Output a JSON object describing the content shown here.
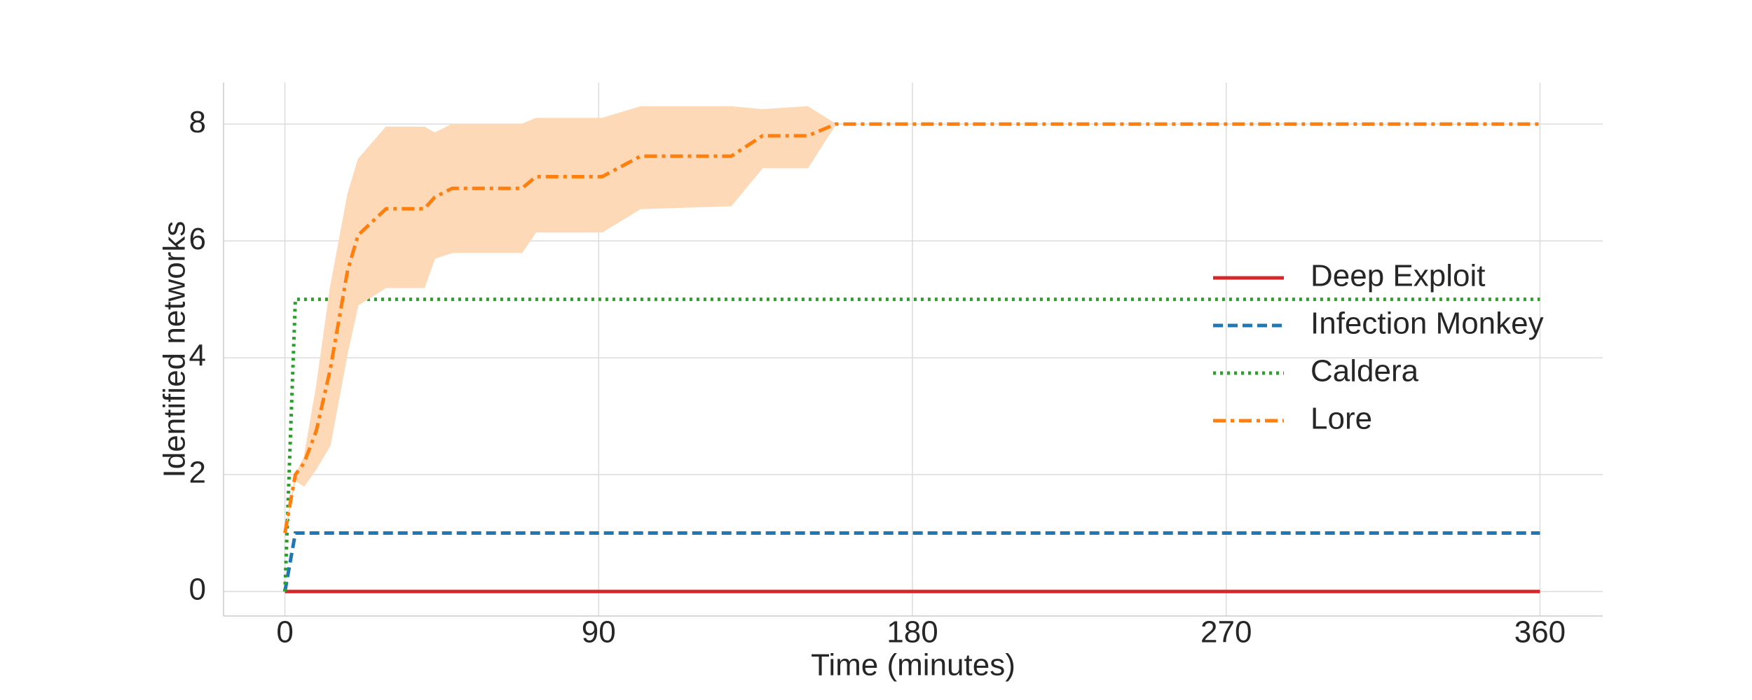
{
  "chart_data": {
    "type": "line",
    "xlabel": "Time (minutes)",
    "ylabel": "Identified networks",
    "xlim": [
      -17.6,
      378
    ],
    "ylim": [
      -0.42,
      8.71
    ],
    "xticks": [
      0,
      90,
      180,
      270,
      360
    ],
    "yticks": [
      0,
      2,
      4,
      6,
      8
    ],
    "grid": true,
    "legend": "center right",
    "series": [
      {
        "name": "Deep Exploit",
        "color": "#d62728",
        "style": "solid",
        "x": [
          0,
          360
        ],
        "values": [
          0,
          0
        ]
      },
      {
        "name": "Infection Monkey",
        "color": "#1f77b4",
        "style": "dashed",
        "x": [
          0,
          3,
          360
        ],
        "values": [
          0,
          1,
          1
        ]
      },
      {
        "name": "Caldera",
        "color": "#2ca02c",
        "style": "dotted",
        "x": [
          0,
          3,
          360
        ],
        "values": [
          0,
          5,
          5
        ]
      },
      {
        "name": "Lore",
        "color": "#ff7f0e",
        "style": "dashdot",
        "band_color": "#fdd9b8",
        "x": [
          0,
          3,
          5.5,
          9,
          13,
          18,
          21,
          29,
          40,
          43,
          48,
          68,
          72,
          91,
          102,
          128,
          137,
          150,
          158,
          360
        ],
        "values": [
          1,
          2,
          2.2,
          2.75,
          3.8,
          5.5,
          6.1,
          6.55,
          6.55,
          6.75,
          6.9,
          6.9,
          7.1,
          7.1,
          7.45,
          7.45,
          7.8,
          7.8,
          8,
          8
        ],
        "lower": [
          1,
          1.9,
          1.8,
          2.1,
          2.5,
          4.1,
          4.9,
          5.2,
          5.2,
          5.7,
          5.8,
          5.8,
          6.15,
          6.15,
          6.55,
          6.6,
          7.25,
          7.25,
          8,
          8
        ],
        "upper": [
          1,
          2,
          2.3,
          3.5,
          5.2,
          6.8,
          7.4,
          7.95,
          7.95,
          7.85,
          8,
          8,
          8.1,
          8.1,
          8.3,
          8.3,
          8.25,
          8.3,
          8,
          8
        ]
      }
    ]
  }
}
